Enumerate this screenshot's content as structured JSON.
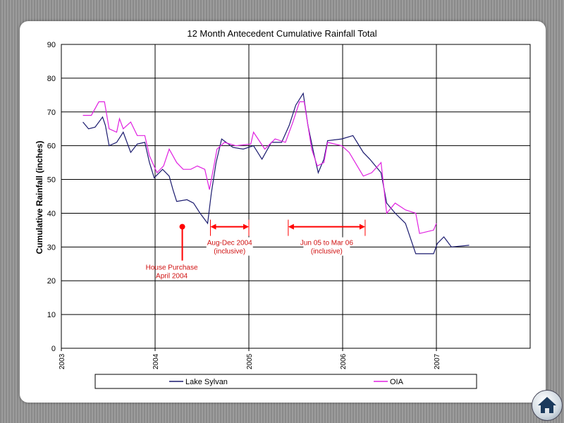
{
  "chart_data": {
    "type": "line",
    "title": "12 Month Antecedent Cumulative Rainfall Total",
    "ylabel": "Cumulative Rainfall (inches)",
    "xlabel": "",
    "xlim": [
      2003,
      2008
    ],
    "ylim": [
      0,
      90
    ],
    "xticks": [
      "2003",
      "2004",
      "2005",
      "2006",
      "2007"
    ],
    "yticks": [
      "0",
      "10",
      "20",
      "30",
      "40",
      "50",
      "60",
      "70",
      "80",
      "90"
    ],
    "grid": true,
    "legend": "bottom",
    "series": [
      {
        "name": "Lake Sylvan",
        "color": "#1a1a6e",
        "x": [
          2003.23,
          2003.29,
          2003.36,
          2003.44,
          2003.47,
          2003.51,
          2003.59,
          2003.66,
          2003.74,
          2003.81,
          2003.89,
          2003.94,
          2003.99,
          2004.08,
          2004.15,
          2004.19,
          2004.23,
          2004.34,
          2004.41,
          2004.48,
          2004.56,
          2004.6,
          2004.65,
          2004.71,
          2004.83,
          2004.94,
          2005.05,
          2005.14,
          2005.24,
          2005.35,
          2005.43,
          2005.5,
          2005.58,
          2005.63,
          2005.69,
          2005.74,
          2005.8,
          2005.84,
          2005.99,
          2006.11,
          2006.22,
          2006.29,
          2006.41,
          2006.47,
          2006.56,
          2006.67,
          2006.78,
          2006.89,
          2006.97,
          2007.01,
          2007.08,
          2007.16,
          2007.35
        ],
        "y": [
          67,
          65,
          65.5,
          68.5,
          66,
          60,
          61,
          64,
          58,
          60.5,
          61,
          55,
          50.5,
          53,
          51,
          47,
          43.5,
          44,
          43,
          40,
          37,
          46,
          55,
          62,
          59.5,
          59,
          60,
          56,
          61,
          61,
          66,
          72,
          75.5,
          66,
          58,
          52,
          56,
          61.5,
          62,
          63,
          58,
          56,
          52,
          43,
          40,
          37,
          28,
          28,
          28,
          31,
          33,
          30,
          30.5
        ]
      },
      {
        "name": "OIA",
        "color": "#e020e0",
        "x": [
          2003.23,
          2003.32,
          2003.4,
          2003.46,
          2003.51,
          2003.59,
          2003.62,
          2003.66,
          2003.74,
          2003.81,
          2003.89,
          2003.94,
          2004.02,
          2004.09,
          2004.15,
          2004.23,
          2004.3,
          2004.38,
          2004.45,
          2004.53,
          2004.58,
          2004.62,
          2004.66,
          2004.74,
          2004.86,
          2005.02,
          2005.05,
          2005.17,
          2005.28,
          2005.39,
          2005.47,
          2005.54,
          2005.59,
          2005.67,
          2005.73,
          2005.8,
          2005.84,
          2005.99,
          2006.07,
          2006.22,
          2006.31,
          2006.41,
          2006.47,
          2006.56,
          2006.67,
          2006.78,
          2006.82,
          2006.97,
          2007.0
        ],
        "y": [
          69,
          69,
          73,
          73,
          65,
          64,
          68,
          65,
          67,
          63,
          63,
          57,
          52,
          54,
          59,
          55,
          53,
          53,
          54,
          53,
          47,
          53,
          59,
          61,
          60,
          60.5,
          64,
          59,
          62,
          61,
          67,
          73,
          73,
          59,
          54,
          55,
          61,
          60,
          58,
          51,
          52,
          55,
          40,
          43,
          41,
          40,
          34,
          35,
          37
        ]
      }
    ],
    "annotations": [
      {
        "type": "point",
        "x": 2004.29,
        "y": 36,
        "label_lines": [
          "House Purchase",
          "April 2004"
        ]
      },
      {
        "type": "range",
        "x0": 2004.59,
        "x1": 2005.0,
        "y": 36,
        "label_lines": [
          "Aug-Dec 2004",
          "(inclusive)"
        ]
      },
      {
        "type": "range",
        "x0": 2005.42,
        "x1": 2006.24,
        "y": 36,
        "label_lines": [
          "Jun 05 to Mar 06",
          "(inclusive)"
        ]
      }
    ],
    "annotation_color": "#ff0000"
  },
  "nav": {
    "home_icon": "home-icon"
  }
}
